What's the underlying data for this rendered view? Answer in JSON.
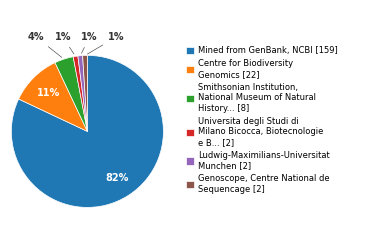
{
  "chart_data": {
    "type": "pie",
    "categories": [
      "Mined from GenBank, NCBI [159]",
      "Centre for Biodiversity\nGenomics [22]",
      "Smithsonian Institution,\nNational Museum of Natural\nHistory... [8]",
      "Universita degli Studi di\nMilano Bicocca, Biotecnologie\ne B... [2]",
      "Ludwig-Maximilians-Universitat\nMunchen [2]",
      "Genoscope, Centre National de\nSequencage [2]"
    ],
    "values": [
      82,
      11,
      4,
      1,
      1,
      1
    ],
    "value_labels": [
      "82%",
      "11%",
      "4%",
      "1%",
      "1%",
      "1%"
    ],
    "data_labels": true,
    "legend": "center left"
  }
}
